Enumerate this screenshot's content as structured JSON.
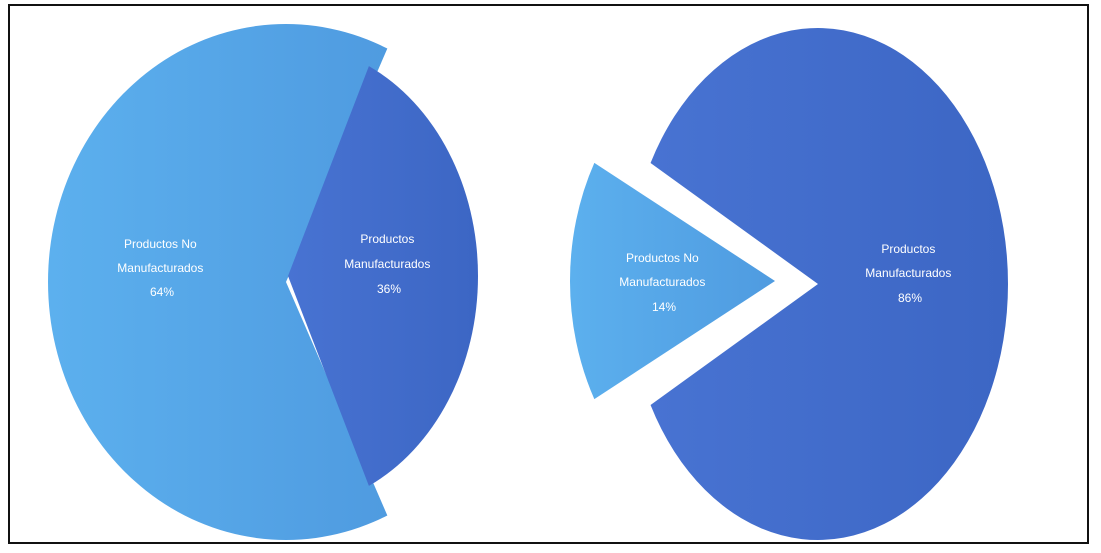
{
  "colors": {
    "light_blue": "#56a6e6",
    "dark_blue": "#4270cd",
    "label": "#ffffff",
    "frame": "#111111"
  },
  "chart_data": [
    {
      "type": "pie",
      "title": "",
      "slices": [
        {
          "label_lines": [
            "Productos No",
            "Manufacturados"
          ],
          "percent_label": "64%",
          "value": 64,
          "color_key": "light_blue"
        },
        {
          "label_lines": [
            "Productos",
            "Manufacturados"
          ],
          "percent_label": "36%",
          "value": 36,
          "color_key": "dark_blue"
        }
      ]
    },
    {
      "type": "pie",
      "title": "",
      "slices": [
        {
          "label_lines": [
            "Productos No",
            "Manufacturados"
          ],
          "percent_label": "14%",
          "value": 14,
          "color_key": "light_blue"
        },
        {
          "label_lines": [
            "Productos",
            "Manufacturados"
          ],
          "percent_label": "86%",
          "value": 86,
          "color_key": "dark_blue"
        }
      ]
    }
  ]
}
